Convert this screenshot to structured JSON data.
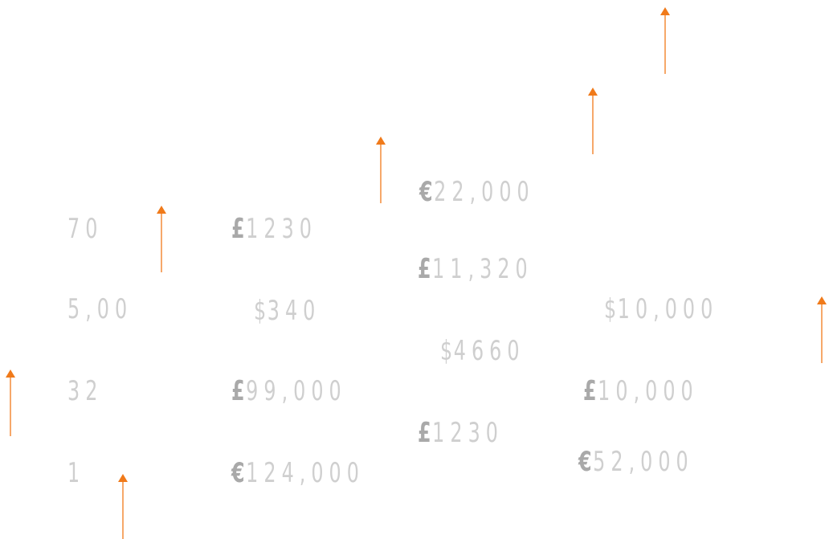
{
  "colors": {
    "number_text": "#cfcfcf",
    "currency_symbol": "#a9a9a9",
    "arrow": "#f07a1a"
  },
  "icons": {
    "arrow": "arrow-up-icon"
  },
  "numbers": {
    "n70": "70",
    "n500": "5,00",
    "n32": "32",
    "n1": "1"
  },
  "amounts": {
    "a1230_left": {
      "symbol": "£",
      "value": "1230"
    },
    "a340": {
      "symbol": "$",
      "value": "340"
    },
    "a99000": {
      "symbol": "£",
      "value": "99,000"
    },
    "a124000": {
      "symbol": "€",
      "value": "124,000"
    },
    "a22000": {
      "symbol": "€",
      "value": "22,000"
    },
    "a11320": {
      "symbol": "£",
      "value": "11,320"
    },
    "a4660": {
      "symbol": "$",
      "value": "4660"
    },
    "a1230_mid": {
      "symbol": "£",
      "value": "1230"
    },
    "a10000_usd": {
      "symbol": "$",
      "value": "10,000"
    },
    "a10000_gbp": {
      "symbol": "£",
      "value": "10,000"
    },
    "a52000": {
      "symbol": "€",
      "value": "52,000"
    }
  }
}
